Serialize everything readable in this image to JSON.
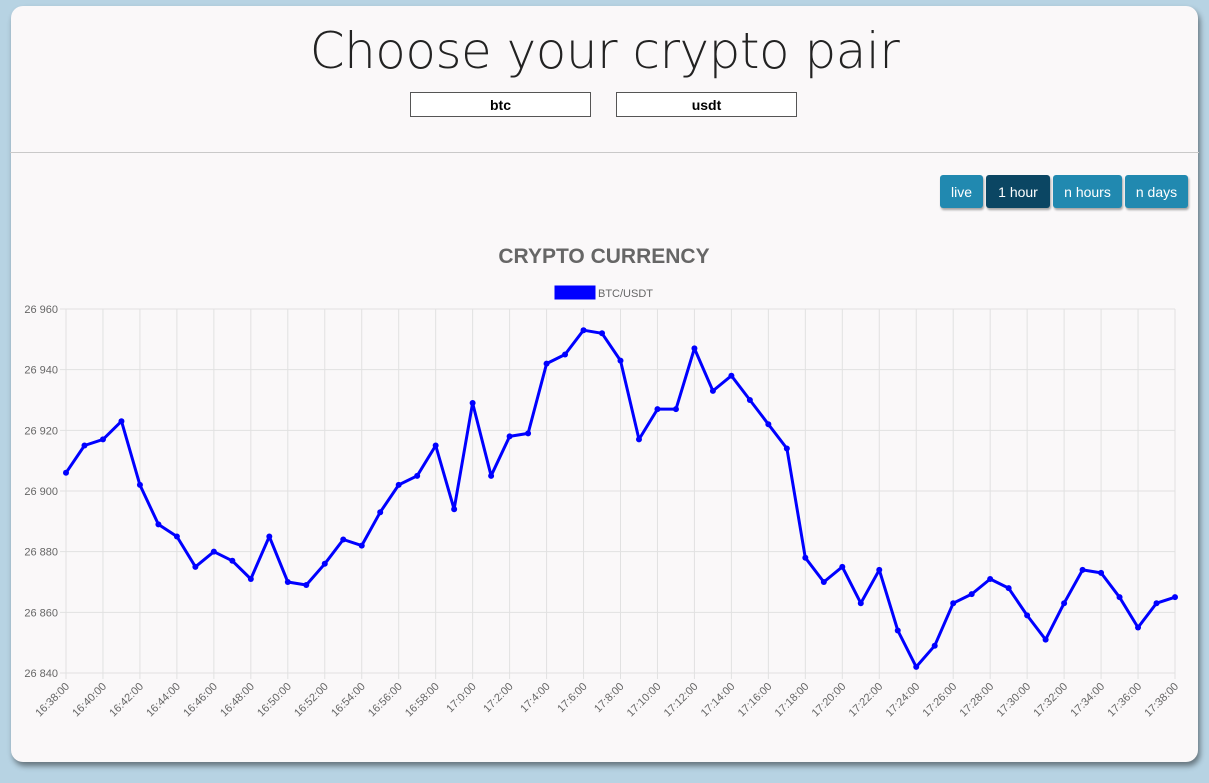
{
  "page": {
    "title": "Choose your crypto pair",
    "base_value": "btc",
    "quote_value": "usdt"
  },
  "controls": {
    "live_label": "live",
    "hour_label": "1 hour",
    "hours_label": "n hours",
    "days_label": "n days",
    "active": "1 hour"
  },
  "colors": {
    "series": "#0000ff",
    "button": "#2189b0",
    "button_active": "#0b4663"
  },
  "chart_data": {
    "type": "line",
    "title": "CRYPTO CURRENCY",
    "grid": true,
    "legend_position": "top",
    "ylim": [
      26840,
      26960
    ],
    "yticks": [
      26960,
      26940,
      26920,
      26900,
      26880,
      26860,
      26840
    ],
    "ytick_labels": [
      "26 960",
      "26 940",
      "26 920",
      "26 900",
      "26 880",
      "26 860",
      "26 840"
    ],
    "x": [
      "16:38:00",
      "16:39:00",
      "16:40:00",
      "16:41:00",
      "16:42:00",
      "16:43:00",
      "16:44:00",
      "16:45:00",
      "16:46:00",
      "16:47:00",
      "16:48:00",
      "16:49:00",
      "16:50:00",
      "16:51:00",
      "16:52:00",
      "16:53:00",
      "16:54:00",
      "16:55:00",
      "16:56:00",
      "16:57:00",
      "16:58:00",
      "16:59:00",
      "17:0:00",
      "17:1:00",
      "17:2:00",
      "17:3:00",
      "17:4:00",
      "17:5:00",
      "17:6:00",
      "17:7:00",
      "17:8:00",
      "17:9:00",
      "17:10:00",
      "17:11:00",
      "17:12:00",
      "17:13:00",
      "17:14:00",
      "17:15:00",
      "17:16:00",
      "17:17:00",
      "17:18:00",
      "17:19:00",
      "17:20:00",
      "17:21:00",
      "17:22:00",
      "17:23:00",
      "17:24:00",
      "17:25:00",
      "17:26:00",
      "17:27:00",
      "17:28:00",
      "17:29:00",
      "17:30:00",
      "17:31:00",
      "17:32:00",
      "17:33:00",
      "17:34:00",
      "17:35:00",
      "17:36:00",
      "17:37:00",
      "17:38:00"
    ],
    "xtick_labels": [
      "16:38:00",
      "16:40:00",
      "16:42:00",
      "16:44:00",
      "16:46:00",
      "16:48:00",
      "16:50:00",
      "16:52:00",
      "16:54:00",
      "16:56:00",
      "16:58:00",
      "17:0:00",
      "17:2:00",
      "17:4:00",
      "17:6:00",
      "17:8:00",
      "17:10:00",
      "17:12:00",
      "17:14:00",
      "17:16:00",
      "17:18:00",
      "17:20:00",
      "17:22:00",
      "17:24:00",
      "17:26:00",
      "17:28:00",
      "17:30:00",
      "17:32:00",
      "17:34:00",
      "17:36:00",
      "17:38:00"
    ],
    "series": [
      {
        "name": "BTC/USDT",
        "color": "#0000ff",
        "values": [
          26906,
          26915,
          26917,
          26923,
          26902,
          26889,
          26885,
          26875,
          26880,
          26877,
          26871,
          26885,
          26870,
          26869,
          26876,
          26884,
          26882,
          26893,
          26902,
          26905,
          26915,
          26894,
          26929,
          26905,
          26918,
          26919,
          26942,
          26945,
          26953,
          26952,
          26943,
          26917,
          26927,
          26927,
          26947,
          26933,
          26938,
          26930,
          26922,
          26914,
          26878,
          26870,
          26875,
          26863,
          26874,
          26854,
          26842,
          26849,
          26863,
          26866,
          26871,
          26868,
          26859,
          26851,
          26863,
          26874,
          26873,
          26865,
          26855,
          26863,
          26865
        ]
      }
    ]
  }
}
